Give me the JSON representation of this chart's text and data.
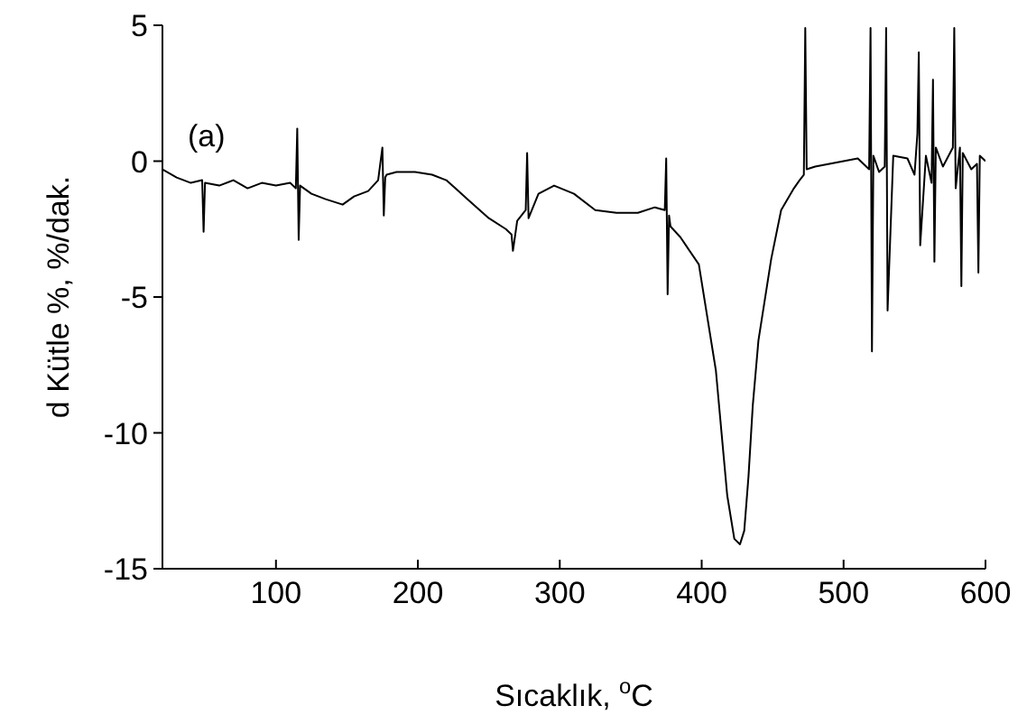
{
  "chart_data": {
    "type": "line",
    "xlabel": "Sıcaklık, $^{o}$C",
    "ylabel": "d Kütle %, %/dak.",
    "annotations": [
      "(a)"
    ],
    "xlim": [
      20,
      600
    ],
    "ylim": [
      -15,
      5
    ],
    "xticks": [
      100,
      200,
      300,
      400,
      500,
      600
    ],
    "yticks": [
      -15,
      -10,
      -5,
      0,
      5
    ],
    "marker": "none",
    "line_style": "solid",
    "series": [
      {
        "color": "#000000",
        "x": [
          20,
          30,
          40,
          48,
          49,
          50,
          60,
          70,
          80,
          90,
          100,
          110,
          114,
          115,
          116,
          117,
          125,
          135,
          147,
          155,
          165,
          172,
          175,
          176,
          177,
          178,
          185,
          198,
          210,
          220,
          235,
          250,
          262,
          266,
          267,
          270,
          276,
          277,
          278,
          285,
          296,
          310,
          325,
          340,
          355,
          367,
          374,
          375,
          376,
          377,
          378,
          385,
          398,
          410,
          418,
          423,
          427,
          430,
          433,
          436,
          440,
          449,
          456,
          465,
          469,
          472,
          473,
          474,
          480,
          490,
          500,
          510,
          518,
          519,
          520,
          521,
          525,
          529,
          530,
          531,
          535,
          545,
          550,
          552,
          553,
          554,
          558,
          562,
          563,
          564,
          565,
          570,
          577,
          578,
          579,
          582,
          583,
          584,
          590,
          594,
          595,
          596,
          600
        ],
        "values": [
          -0.3,
          -0.6,
          -0.8,
          -0.7,
          -2.6,
          -0.8,
          -0.9,
          -0.7,
          -1.0,
          -0.8,
          -0.9,
          -0.8,
          -1.0,
          1.2,
          -2.9,
          -0.9,
          -1.2,
          -1.4,
          -1.6,
          -1.3,
          -1.1,
          -0.7,
          0.5,
          -2.0,
          -0.6,
          -0.5,
          -0.4,
          -0.4,
          -0.5,
          -0.7,
          -1.4,
          -2.1,
          -2.5,
          -2.7,
          -3.3,
          -2.2,
          -1.8,
          0.3,
          -2.1,
          -1.2,
          -0.9,
          -1.2,
          -1.8,
          -1.9,
          -1.9,
          -1.7,
          -1.8,
          0.1,
          -4.9,
          -2.0,
          -2.4,
          -2.8,
          -3.8,
          -7.7,
          -12.3,
          -13.9,
          -14.1,
          -13.6,
          -11.6,
          -9.0,
          -6.6,
          -3.6,
          -1.8,
          -1.0,
          -0.7,
          -0.5,
          4.9,
          -0.3,
          -0.2,
          -0.1,
          0,
          0.1,
          -0.3,
          4.9,
          -7.0,
          0.2,
          -0.4,
          -0.2,
          4.9,
          -5.5,
          0.2,
          0.1,
          -0.5,
          1.0,
          4.0,
          -3.1,
          0.2,
          -0.8,
          3.0,
          -3.7,
          0.5,
          -0.2,
          0.5,
          4.9,
          -1.0,
          0.5,
          -4.6,
          0.3,
          -0.3,
          -0.1,
          -4.1,
          0.2,
          0
        ]
      }
    ]
  }
}
